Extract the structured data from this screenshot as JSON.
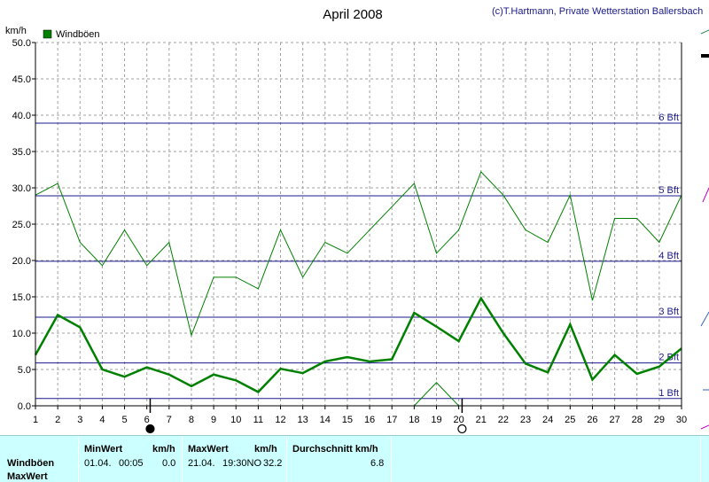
{
  "chart_data": {
    "type": "line",
    "title": "April 2008",
    "credit": "(c)T.Hartmann, Private Wetterstation Ballersbach",
    "ylabel": "km/h",
    "ylim": [
      0,
      50
    ],
    "yticks": [
      "0.0",
      "5.0",
      "10.0",
      "15.0",
      "20.0",
      "25.0",
      "30.0",
      "35.0",
      "40.0",
      "45.0",
      "50.0"
    ],
    "x": [
      1,
      2,
      3,
      4,
      5,
      6,
      7,
      8,
      9,
      10,
      11,
      12,
      13,
      14,
      15,
      16,
      17,
      18,
      19,
      20,
      21,
      22,
      23,
      24,
      25,
      26,
      27,
      28,
      29,
      30
    ],
    "legend": [
      {
        "name": "Windböen",
        "color": "#008000"
      }
    ],
    "series": [
      {
        "key": "max",
        "color": "#008000",
        "width": 1,
        "values": [
          29.0,
          30.6,
          22.5,
          19.3,
          24.2,
          19.3,
          22.5,
          9.7,
          17.7,
          17.7,
          16.1,
          24.2,
          17.7,
          22.5,
          21.0,
          24.2,
          27.4,
          30.6,
          21.0,
          24.2,
          32.2,
          29.0,
          24.2,
          22.5,
          29.0,
          14.5,
          25.8,
          25.8,
          22.5,
          29.0
        ]
      },
      {
        "key": "avg",
        "color": "#008000",
        "width": 2.5,
        "values": [
          7.0,
          12.5,
          10.8,
          5.0,
          4.0,
          5.3,
          4.3,
          2.7,
          4.3,
          3.5,
          1.9,
          5.1,
          4.5,
          6.1,
          6.7,
          6.1,
          6.4,
          12.8,
          10.9,
          8.9,
          14.8,
          10.0,
          5.8,
          4.6,
          11.2,
          3.6,
          7.0,
          4.4,
          5.4,
          7.9
        ]
      },
      {
        "key": "min",
        "color": "#008000",
        "width": 1,
        "values": [
          0,
          0,
          0,
          0,
          0,
          0,
          0,
          0,
          0,
          0,
          0,
          0,
          0,
          0,
          0,
          0,
          0,
          0,
          3.2,
          0,
          0,
          0,
          0,
          0,
          0,
          0,
          0,
          0,
          0,
          0
        ]
      }
    ],
    "beaufort_lines": [
      {
        "value": 1,
        "label": "1 Bft"
      },
      {
        "value": 5.9,
        "label": "2 Bft"
      },
      {
        "value": 12.2,
        "label": "3 Bft"
      },
      {
        "value": 19.9,
        "label": "4 Bft"
      },
      {
        "value": 28.9,
        "label": "5 Bft"
      },
      {
        "value": 38.9,
        "label": "6 Bft"
      }
    ],
    "moon_phases": [
      {
        "day": 6,
        "phase": "new"
      },
      {
        "day": 20,
        "phase": "full"
      }
    ],
    "grid": true
  },
  "stats": {
    "row_label_1": "Windböen",
    "row_label_2": "MaxWert",
    "min_header": "MinWert",
    "min_unit": "km/h",
    "min_date": "01.04.",
    "min_time": "00:05",
    "min_value": "0.0",
    "max_header": "MaxWert",
    "max_unit": "km/h",
    "max_date": "21.04.",
    "max_time": "19:30NO",
    "max_value": "32.2",
    "avg_header": "Durchschnitt km/h",
    "avg_value": "6.8"
  }
}
